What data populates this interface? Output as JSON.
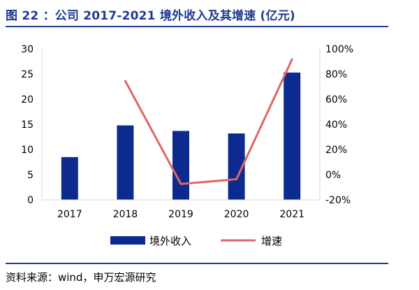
{
  "header": {
    "title": "图 22 ：公司 2017-2021 境外收入及其增速 (亿元)"
  },
  "footer": {
    "source": "资料来源：wind，申万宏源研究"
  },
  "colors": {
    "title": "#1f3a93",
    "bar": "#0d2b8e",
    "line": "#e06666",
    "axis": "#d9d9d9"
  },
  "chart_data": {
    "type": "bar",
    "categories": [
      "2017",
      "2018",
      "2019",
      "2020",
      "2021"
    ],
    "series": [
      {
        "name": "境外收入",
        "type": "bar",
        "axis": "left",
        "values": [
          8.5,
          14.8,
          13.7,
          13.2,
          25.3
        ]
      },
      {
        "name": "增速",
        "type": "line",
        "axis": "right",
        "values": [
          null,
          74.5,
          -7.4,
          -3.6,
          91.7
        ],
        "unit": "%"
      }
    ],
    "left_axis": {
      "ylim": [
        0,
        30
      ],
      "ticks": [
        "0",
        "5",
        "10",
        "15",
        "20",
        "25",
        "30"
      ]
    },
    "right_axis": {
      "ylim": [
        -20,
        100
      ],
      "ticks": [
        "-20%",
        "0%",
        "20%",
        "40%",
        "60%",
        "80%",
        "100%"
      ]
    },
    "grid": false,
    "legend": "bottom"
  }
}
